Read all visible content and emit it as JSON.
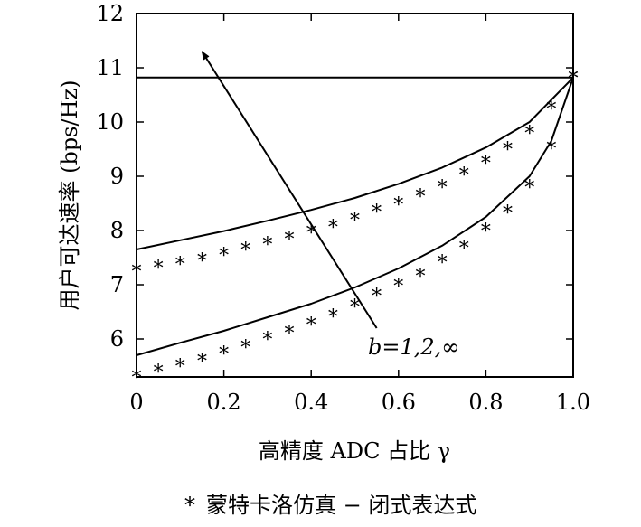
{
  "chart_data": {
    "type": "line",
    "xlabel": "高精度 ADC 占比 γ",
    "ylabel": "用户可达速率 (bps/Hz)",
    "xlim": [
      0,
      1.0
    ],
    "ylim": [
      5.3,
      12
    ],
    "x_ticks": [
      "0",
      "0.2",
      "0.4",
      "0.6",
      "0.8",
      "1.0"
    ],
    "y_ticks": [
      "6",
      "7",
      "8",
      "9",
      "10",
      "11",
      "12"
    ],
    "grid": false,
    "legend_placement": "bottom-center",
    "legend": {
      "entries": [
        {
          "marker": "*",
          "label": "蒙特卡洛仿真 − 闭式表达式"
        }
      ]
    },
    "annotation": {
      "text": "b=1,2,∞",
      "arrow_from": [
        0.55,
        6.2
      ],
      "arrow_to": [
        0.15,
        11.3
      ]
    },
    "series": [
      {
        "type": "line",
        "x": [
          0,
          1.0
        ],
        "y": [
          10.82,
          10.82
        ]
      },
      {
        "type": "line",
        "x": [
          0,
          0.1,
          0.2,
          0.3,
          0.4,
          0.5,
          0.6,
          0.7,
          0.8,
          0.9,
          1.0
        ],
        "y": [
          7.65,
          7.82,
          7.99,
          8.18,
          8.38,
          8.6,
          8.86,
          9.16,
          9.53,
          10.0,
          10.82
        ]
      },
      {
        "type": "line",
        "x": [
          0,
          0.1,
          0.2,
          0.3,
          0.4,
          0.5,
          0.6,
          0.7,
          0.8,
          0.9,
          0.95,
          1.0
        ],
        "y": [
          5.7,
          5.93,
          6.15,
          6.4,
          6.65,
          6.95,
          7.3,
          7.72,
          8.25,
          9.0,
          9.65,
          10.82
        ]
      },
      {
        "type": "scatter",
        "marker": "*",
        "x": [
          0,
          0.05,
          0.1,
          0.15,
          0.2,
          0.25,
          0.3,
          0.35,
          0.4,
          0.45,
          0.5,
          0.55,
          0.6,
          0.65,
          0.7,
          0.75,
          0.8,
          0.85,
          0.9,
          0.95,
          1.0
        ],
        "y": [
          7.25,
          7.32,
          7.38,
          7.45,
          7.55,
          7.65,
          7.75,
          7.85,
          7.97,
          8.07,
          8.2,
          8.35,
          8.48,
          8.63,
          8.8,
          9.03,
          9.25,
          9.5,
          9.8,
          10.25,
          10.82
        ]
      },
      {
        "type": "scatter",
        "marker": "*",
        "x": [
          0,
          0.05,
          0.1,
          0.15,
          0.2,
          0.25,
          0.3,
          0.35,
          0.4,
          0.45,
          0.5,
          0.55,
          0.6,
          0.65,
          0.7,
          0.75,
          0.8,
          0.85,
          0.9,
          0.95,
          1.0
        ],
        "y": [
          5.3,
          5.4,
          5.5,
          5.6,
          5.73,
          5.85,
          6.0,
          6.12,
          6.27,
          6.42,
          6.6,
          6.8,
          6.98,
          7.17,
          7.42,
          7.68,
          8.0,
          8.33,
          8.8,
          9.52,
          10.82
        ]
      }
    ]
  }
}
